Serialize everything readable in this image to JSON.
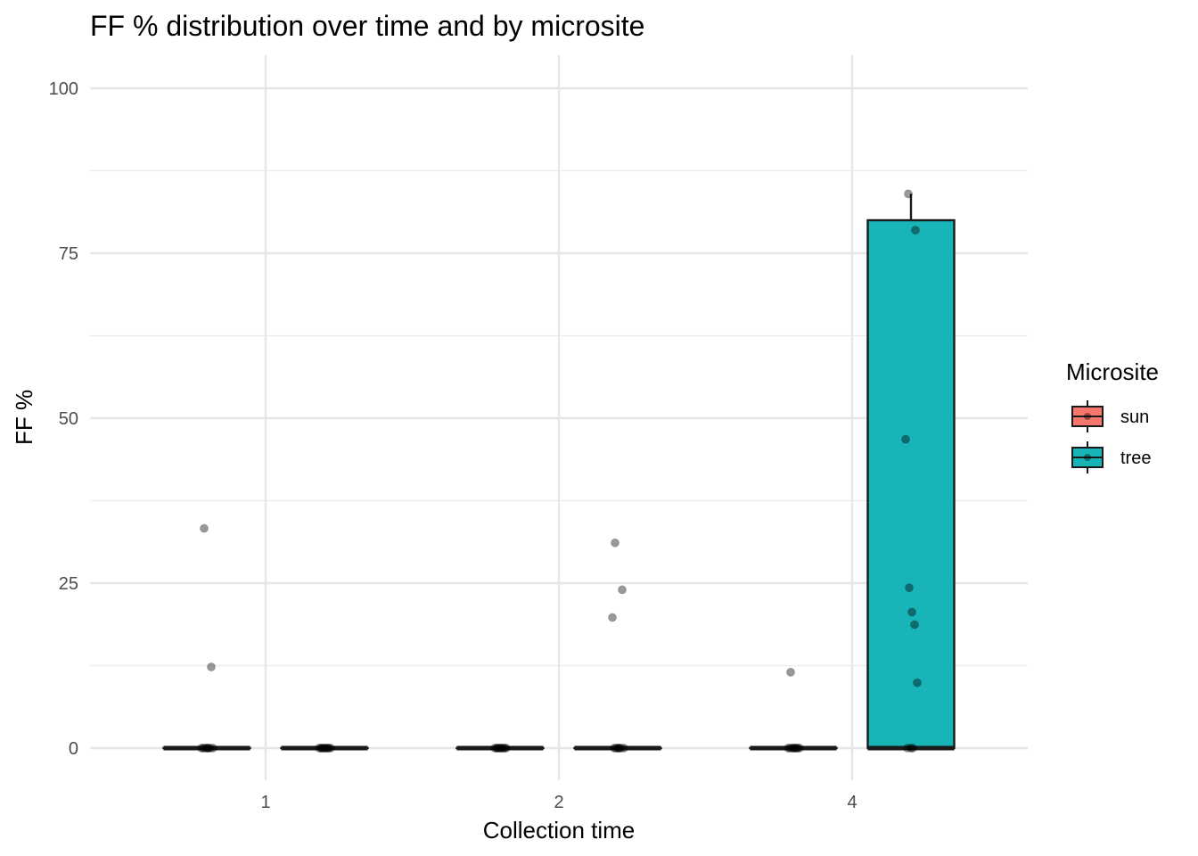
{
  "chart_data": {
    "type": "boxplot",
    "title": "FF % distribution over time and by microsite",
    "xlabel": "Collection time",
    "ylabel": "FF %",
    "categories": [
      "1",
      "2",
      "4"
    ],
    "ylim": [
      -5,
      105
    ],
    "yticks": [
      0,
      25,
      50,
      75,
      100
    ],
    "grid": true,
    "legend": {
      "title": "Microsite",
      "placement": "right",
      "entries": [
        {
          "name": "sun",
          "color": "#F8766D"
        },
        {
          "name": "tree",
          "color": "#19B4B8"
        }
      ]
    },
    "series": [
      {
        "name": "sun",
        "color": "#F8766D",
        "boxes": [
          {
            "category": "1",
            "min": 0,
            "q1": 0,
            "median": 0,
            "q3": 0,
            "max": 0
          },
          {
            "category": "2",
            "min": 0,
            "q1": 0,
            "median": 0,
            "q3": 0,
            "max": 0
          },
          {
            "category": "4",
            "min": 0,
            "q1": 0,
            "median": 0,
            "q3": 0,
            "max": 0
          }
        ]
      },
      {
        "name": "tree",
        "color": "#19B4B8",
        "boxes": [
          {
            "category": "1",
            "min": 0,
            "q1": 0,
            "median": 0,
            "q3": 0,
            "max": 0
          },
          {
            "category": "2",
            "min": 0,
            "q1": 0,
            "median": 0,
            "q3": 0,
            "max": 0
          },
          {
            "category": "4",
            "min": 0,
            "q1": 0,
            "median": 0,
            "q3": 80,
            "max": 84
          }
        ]
      }
    ],
    "points": [
      {
        "category": "1",
        "series": "sun",
        "values": [
          33.3,
          12.3,
          0,
          0,
          0,
          0,
          0,
          0,
          0,
          0
        ]
      },
      {
        "category": "1",
        "series": "tree",
        "values": [
          0,
          0,
          0,
          0,
          0,
          0,
          0,
          0,
          0,
          0
        ]
      },
      {
        "category": "2",
        "series": "sun",
        "values": [
          0,
          0,
          0,
          0,
          0,
          0,
          0,
          0,
          0,
          0
        ]
      },
      {
        "category": "2",
        "series": "tree",
        "values": [
          31.1,
          24.0,
          19.8,
          0,
          0,
          0,
          0,
          0,
          0,
          0
        ]
      },
      {
        "category": "4",
        "series": "sun",
        "values": [
          11.5,
          0,
          0,
          0,
          0,
          0,
          0,
          0,
          0,
          0
        ]
      },
      {
        "category": "4",
        "series": "tree",
        "values": [
          84.0,
          78.5,
          46.8,
          24.3,
          20.6,
          18.7,
          9.9,
          0,
          0,
          0
        ]
      }
    ]
  }
}
